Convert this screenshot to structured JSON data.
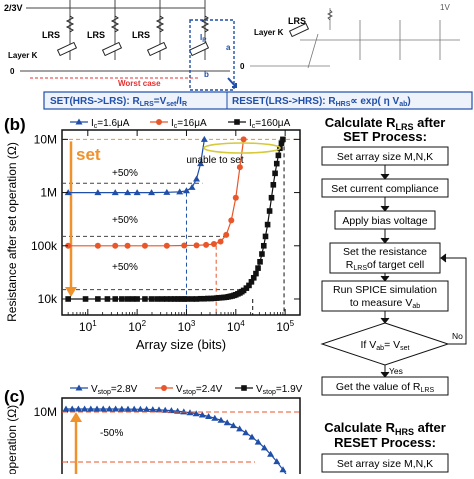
{
  "top": {
    "voltage_label": "2/3V",
    "layer_label": "Layer K",
    "zero_label": "0",
    "lrs_labels": [
      "LRS",
      "LRS",
      "LRS"
    ],
    "worst_case": "Worst case",
    "ir_label": "I",
    "ir_sub": "R",
    "a_label": "a",
    "b_label": "b",
    "right_lrs": "LRS",
    "right_layer": "Layer K",
    "right_zero": "0",
    "right_1v": "1V",
    "formula_left": "SET(HRS->LRS):   R",
    "formula_left_sub": "LRS",
    "formula_left_rest": "=V",
    "formula_left_sub2": "set",
    "formula_left_end": "/I",
    "formula_left_sub3": "R",
    "formula_right": "RESET(LRS->HRS):  R",
    "formula_right_sub": "HRS",
    "formula_right_rest": "∝ exp( η V",
    "formula_right_sub2": "ab",
    "formula_right_end": ")"
  },
  "panel_b": {
    "label": "(b)",
    "set_text": "set",
    "unable_text": "unable to set",
    "pct_labels": [
      "+50%",
      "+50%",
      "+50%"
    ]
  },
  "panel_c": {
    "label": "(c)",
    "pct_label": "-50%",
    "legend": [
      {
        "main": "V",
        "sub": "stop",
        "val": "=2.8V",
        "color": "#1f4fa8",
        "marker": "tri"
      },
      {
        "main": "V",
        "sub": "stop",
        "val": "=2.4V",
        "color": "#e8562a",
        "marker": "circle"
      },
      {
        "main": "V",
        "sub": "stop",
        "val": "=1.9V",
        "color": "#111111",
        "marker": "square"
      }
    ],
    "y_tick": "10M",
    "ylabel_partial": "operation (Ω)"
  },
  "flow1": {
    "title_line1": "Calculate R",
    "title_sub1": "LRS",
    "title_line1b": " after",
    "title_line2": "SET Process:",
    "steps": [
      "Set array size M,N,K",
      "Set current compliance",
      "Apply bias voltage",
      "Set the resistance",
      "of target cell",
      "Run SPICE simulation",
      "to measure V",
      "If V",
      "= V",
      "Get the value of R"
    ],
    "step4_sub": "LRS",
    "step5_sub": "ab",
    "decision_sub1": "ab",
    "decision_sub2": "set",
    "final_sub": "LRS",
    "no_label": "No",
    "yes_label": "Yes"
  },
  "flow2": {
    "title_line1": "Calculate R",
    "title_sub1": "HRS",
    "title_line1b": " after",
    "title_line2": "RESET Process:",
    "step1": "Set array size M,N,K"
  },
  "chart_data": {
    "type": "line",
    "title": "",
    "xlabel": "Array size (bits)",
    "ylabel": "Resistance after set operation (Ω)",
    "x_scale": "log",
    "y_scale": "log",
    "xlim": [
      3,
      200000
    ],
    "ylim": [
      5000,
      15000000
    ],
    "x_ticks": [
      {
        "value": 10,
        "label": "10",
        "exp": "1"
      },
      {
        "value": 100,
        "label": "10",
        "exp": "2"
      },
      {
        "value": 1000,
        "label": "10",
        "exp": "3"
      },
      {
        "value": 10000,
        "label": "10",
        "exp": "4"
      },
      {
        "value": 100000,
        "label": "10",
        "exp": "5"
      }
    ],
    "y_ticks": [
      {
        "value": 10000,
        "label": "10k"
      },
      {
        "value": 100000,
        "label": "100k"
      },
      {
        "value": 1000000,
        "label": "1M"
      },
      {
        "value": 10000000,
        "label": "10M"
      }
    ],
    "legend_position": "top",
    "series": [
      {
        "name": "I=1.6μA",
        "legend_main": "I",
        "legend_sub": "c",
        "legend_val": "=1.6μA",
        "color": "#1f4fa8",
        "marker": "triangle",
        "x": [
          4,
          16,
          36,
          64,
          100,
          196,
          400,
          729,
          1000,
          1296,
          1600,
          1936,
          2304
        ],
        "y": [
          1000000,
          1000000,
          1000000,
          1000000,
          1000000,
          1000000,
          1010000,
          1030000,
          1080000,
          1250000,
          1800000,
          3500000,
          10000000
        ]
      },
      {
        "name": "I=16μA",
        "legend_main": "I",
        "legend_sub": "c",
        "legend_val": "=16μA",
        "color": "#e8562a",
        "marker": "circle",
        "x": [
          4,
          16,
          36,
          64,
          144,
          400,
          900,
          1600,
          2500,
          3600,
          4900,
          6400,
          8100,
          10000,
          12100,
          14400
        ],
        "y": [
          100000,
          100000,
          100000,
          100000,
          100000,
          100000,
          101000,
          102000,
          104000,
          108000,
          120000,
          160000,
          300000,
          800000,
          3000000,
          10000000
        ]
      },
      {
        "name": "I=160μA",
        "legend_main": "I",
        "legend_sub": "c",
        "legend_val": "=160μA",
        "color": "#111111",
        "marker": "square",
        "x": [
          4,
          9,
          16,
          25,
          36,
          49,
          64,
          81,
          100,
          144,
          196,
          256,
          324,
          400,
          484,
          576,
          676,
          784,
          900,
          1024,
          1296,
          1600,
          1936,
          2304,
          2704,
          3136,
          3600,
          4096,
          4624,
          5184,
          5776,
          6400,
          7056,
          7744,
          8464,
          9216,
          10000,
          11025,
          12100,
          13225,
          14400,
          16384,
          18496,
          20736,
          23104,
          25600,
          28224,
          30976,
          33856,
          36864,
          40000,
          44100,
          48400,
          52900,
          57600,
          62500,
          67600,
          72900,
          78400,
          84100,
          90000
        ],
        "y": [
          10000,
          10000,
          10000,
          10000,
          10000,
          10000,
          10000,
          10000,
          10000,
          10000,
          10000,
          10000,
          10000,
          10000,
          10000,
          10000,
          10000,
          10000,
          10000,
          10000,
          10000,
          10000,
          10100,
          10100,
          10200,
          10200,
          10300,
          10400,
          10500,
          10600,
          10700,
          10800,
          11000,
          11200,
          11400,
          11700,
          12000,
          12500,
          13000,
          13700,
          14500,
          16000,
          18000,
          21000,
          25000,
          30000,
          38000,
          50000,
          70000,
          100000,
          150000,
          250000,
          450000,
          800000,
          1400000,
          2300000,
          3500000,
          5000000,
          6800000,
          8500000,
          10000000
        ]
      }
    ]
  }
}
